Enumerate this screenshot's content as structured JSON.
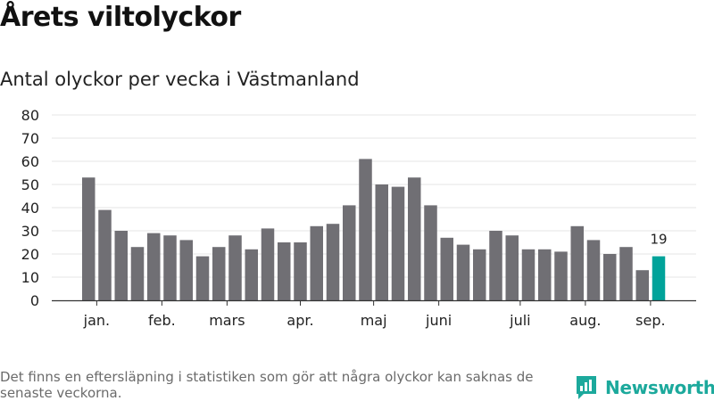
{
  "title": "Årets viltolyckor",
  "subtitle": "Antal olyckor per vecka i Västmanland",
  "footnote": "Det finns en eftersläpning i statistiken som gör att några olyckor kan saknas de senaste veckorna.",
  "brand": {
    "name": "Newsworthy",
    "icon": "newsworthy-logo-icon",
    "color": "#1ca99c"
  },
  "colors": {
    "bar": "#706f74",
    "highlight": "#00a39a",
    "grid": "#e6e6e6",
    "axis": "#333333"
  },
  "chart_data": {
    "type": "bar",
    "title": "Årets viltolyckor",
    "subtitle": "Antal olyckor per vecka i Västmanland",
    "xlabel": "",
    "ylabel": "",
    "ylim": [
      0,
      80
    ],
    "yticks": [
      0,
      10,
      20,
      30,
      40,
      50,
      60,
      70,
      80
    ],
    "grid": true,
    "values": [
      53,
      39,
      30,
      23,
      29,
      28,
      26,
      19,
      23,
      28,
      22,
      31,
      25,
      25,
      32,
      33,
      41,
      61,
      50,
      49,
      53,
      41,
      27,
      24,
      22,
      30,
      28,
      22,
      22,
      21,
      32,
      26,
      20,
      23,
      13,
      19
    ],
    "month_labels": [
      {
        "label": "jan.",
        "bar_index": 0.5
      },
      {
        "label": "feb.",
        "bar_index": 4.5
      },
      {
        "label": "mars",
        "bar_index": 8.5
      },
      {
        "label": "apr.",
        "bar_index": 13
      },
      {
        "label": "maj",
        "bar_index": 17.5
      },
      {
        "label": "juni",
        "bar_index": 21.5
      },
      {
        "label": "juli",
        "bar_index": 26.5
      },
      {
        "label": "aug.",
        "bar_index": 30.5
      },
      {
        "label": "sep.",
        "bar_index": 34.5
      }
    ],
    "highlight_index": 35,
    "highlight_label": "19"
  }
}
